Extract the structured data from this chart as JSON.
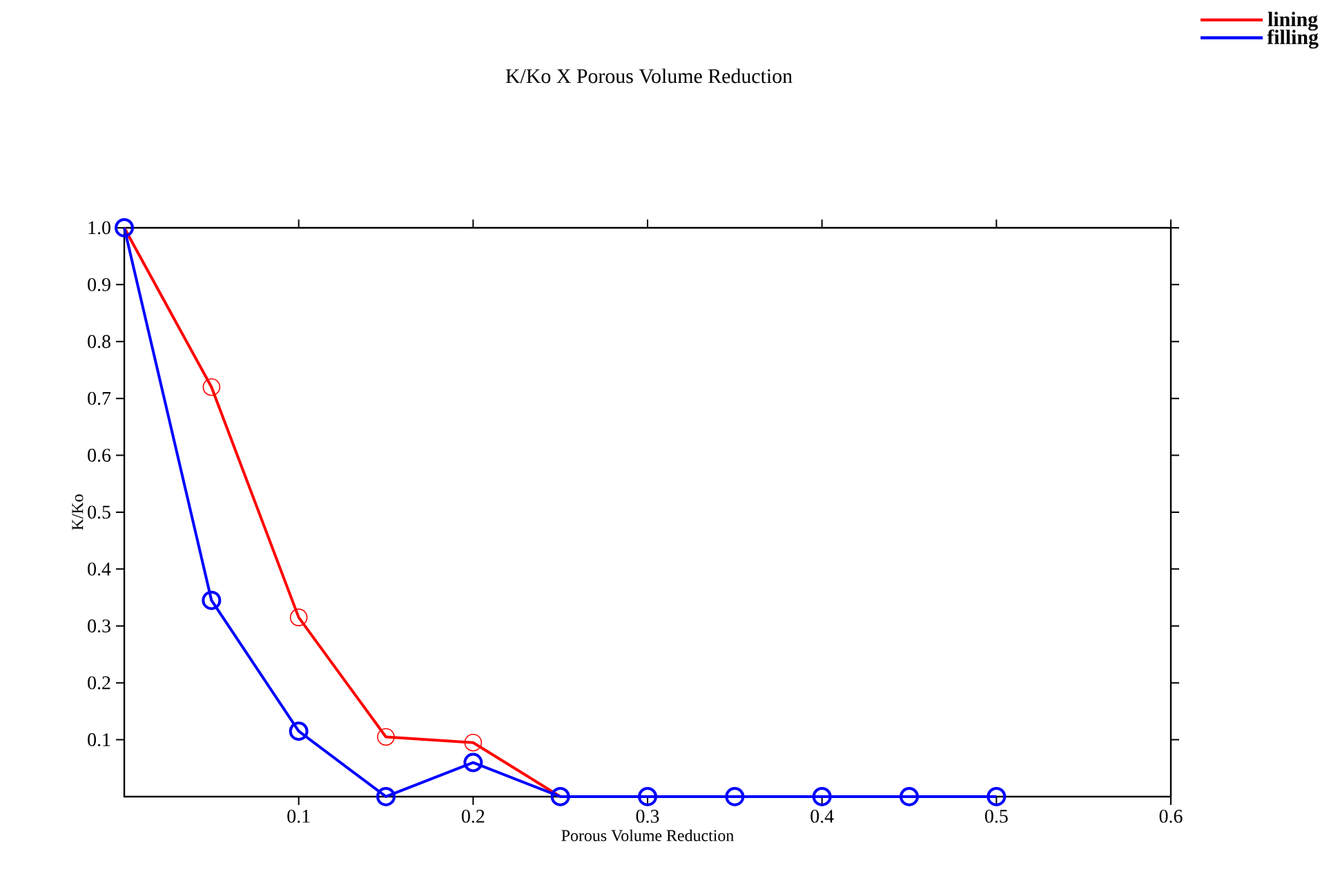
{
  "chart_data": {
    "type": "line",
    "title": "K/Ko X Porous Volume Reduction",
    "xlabel": "Porous Volume Reduction",
    "ylabel": "K/Ko",
    "xlim": [
      0,
      0.6
    ],
    "ylim": [
      0,
      1.0
    ],
    "xticks": [
      0.1,
      0.2,
      0.3,
      0.4,
      0.5,
      0.6
    ],
    "yticks": [
      0.1,
      0.2,
      0.3,
      0.4,
      0.5,
      0.6,
      0.7,
      0.8,
      0.9,
      {
        "value": 1.0,
        "label": "1.0"
      }
    ],
    "legend": "top right",
    "marker": "circle",
    "line_style": "solid",
    "series": [
      {
        "name": "lining",
        "color": "#ff0000",
        "x": [
          0,
          0.05,
          0.1,
          0.15,
          0.2,
          0.25
        ],
        "values": [
          1.0,
          0.72,
          0.315,
          0.105,
          0.095,
          0.0
        ]
      },
      {
        "name": "filling",
        "color": "#0000ff",
        "x": [
          0,
          0.05,
          0.1,
          0.15,
          0.2,
          0.25,
          0.3,
          0.35,
          0.4,
          0.45,
          0.5
        ],
        "values": [
          1.0,
          0.345,
          0.115,
          0.0,
          0.06,
          0.0,
          0.0,
          0.0,
          0.0,
          0.0,
          0.0
        ]
      }
    ]
  }
}
